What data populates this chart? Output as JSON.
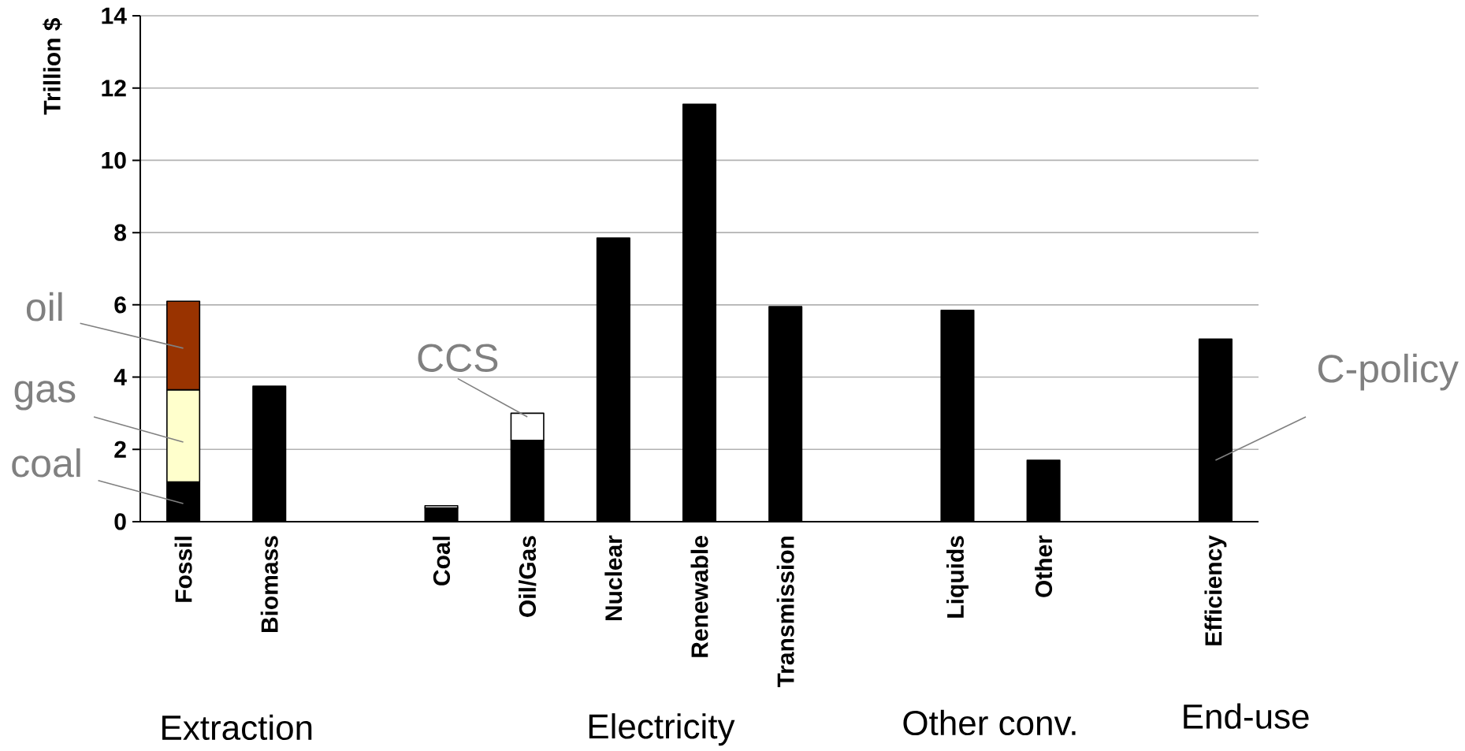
{
  "chart_data": {
    "type": "bar",
    "stacked": true,
    "ylabel": "Trillion $",
    "categories": [
      "Fossil",
      "Biomass",
      null,
      "Coal",
      "Oil/Gas",
      "Nuclear",
      "Renewable",
      "Transmission",
      null,
      "Liquids",
      "Other",
      null,
      "Efficiency"
    ],
    "series": [
      {
        "color": "#000000",
        "values": [
          1.1,
          3.75,
          null,
          0.38,
          2.25,
          7.85,
          11.55,
          5.95,
          null,
          5.85,
          1.7,
          null,
          5.05
        ]
      },
      {
        "color": "#ffffcc",
        "values": [
          2.55,
          null,
          null,
          null,
          null,
          null,
          null,
          null,
          null,
          null,
          null,
          null,
          null
        ]
      },
      {
        "color": "#993300",
        "values": [
          2.45,
          null,
          null,
          null,
          null,
          null,
          null,
          null,
          null,
          null,
          null,
          null,
          null
        ]
      },
      {
        "color": "#ffffff",
        "values": [
          null,
          null,
          null,
          0.06,
          0.75,
          null,
          null,
          null,
          null,
          null,
          null,
          null,
          null
        ]
      }
    ],
    "ylim": [
      0,
      14
    ],
    "yticks": [
      0,
      2,
      4,
      6,
      8,
      10,
      12,
      14
    ],
    "grid": "y",
    "annotations": [
      "oil",
      "gas",
      "coal",
      {
        "text": "CCS",
        "x": "Oil/Gas",
        "y": 2.9
      },
      "C-policy",
      "Extraction",
      "Electricity",
      "Other conv.",
      "End-use"
    ]
  }
}
